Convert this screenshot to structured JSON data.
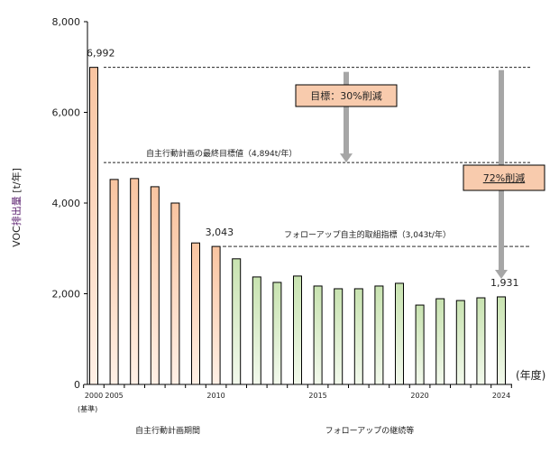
{
  "chart_data": {
    "type": "bar",
    "title": "",
    "ylabel_prefix": "VOC",
    "ylabel_highlight": "排出量",
    "ylabel_suffix": " [t/年]",
    "xlabel": "(年度)",
    "ylim": [
      0,
      8000
    ],
    "yticks": [
      0,
      2000,
      4000,
      6000,
      8000
    ],
    "ytick_labels": [
      "0",
      "2,000",
      "4,000",
      "6,000",
      "8,000"
    ],
    "categories": [
      "2000",
      "2005",
      "2006",
      "2007",
      "2008",
      "2009",
      "2010",
      "2011",
      "2012",
      "2013",
      "2014",
      "2015",
      "2016",
      "2017",
      "2018",
      "2019",
      "2020",
      "2021",
      "2022",
      "2023",
      "2024"
    ],
    "values": [
      6992,
      4520,
      4540,
      4360,
      4000,
      3120,
      3043,
      2770,
      2370,
      2250,
      2390,
      2170,
      2110,
      2110,
      2170,
      2230,
      1750,
      1890,
      1850,
      1910,
      1931
    ],
    "series_groups": [
      {
        "name": "自主行動計画期間",
        "from": "2000",
        "to": "2010",
        "color": "#f9c9a6"
      },
      {
        "name": "フォローアップの継続等",
        "from": "2011",
        "to": "2024",
        "color": "#cfe6b8"
      }
    ],
    "xtick_labels": [
      {
        "category": "2000",
        "label": "2000"
      },
      {
        "category": "2005",
        "label": "2005"
      },
      {
        "category": "2010",
        "label": "2010"
      },
      {
        "category": "2015",
        "label": "2015"
      },
      {
        "category": "2020",
        "label": "2020"
      },
      {
        "category": "2024",
        "label": "2024"
      }
    ],
    "base_note": "(基準)",
    "data_labels": [
      {
        "category": "2000",
        "text": "6,992"
      },
      {
        "category": "2010",
        "text": "3,043"
      },
      {
        "category": "2024",
        "text": "1,931"
      }
    ],
    "reference_lines": [
      {
        "value": 6992,
        "label": ""
      },
      {
        "value": 4894,
        "label": "自主行動計画の最終目標値（4,894t/年）"
      },
      {
        "value": 3043,
        "label": "フォローアップ自主的取組指標（3,043t/年）"
      }
    ],
    "annotations": [
      {
        "text": "目標：30%削減",
        "from": 6992,
        "to": 4894
      },
      {
        "text": "72%削減",
        "from": 6992,
        "to": 1931
      }
    ],
    "period_labels": [
      "自主行動計画期間",
      "フォローアップの継続等"
    ]
  }
}
